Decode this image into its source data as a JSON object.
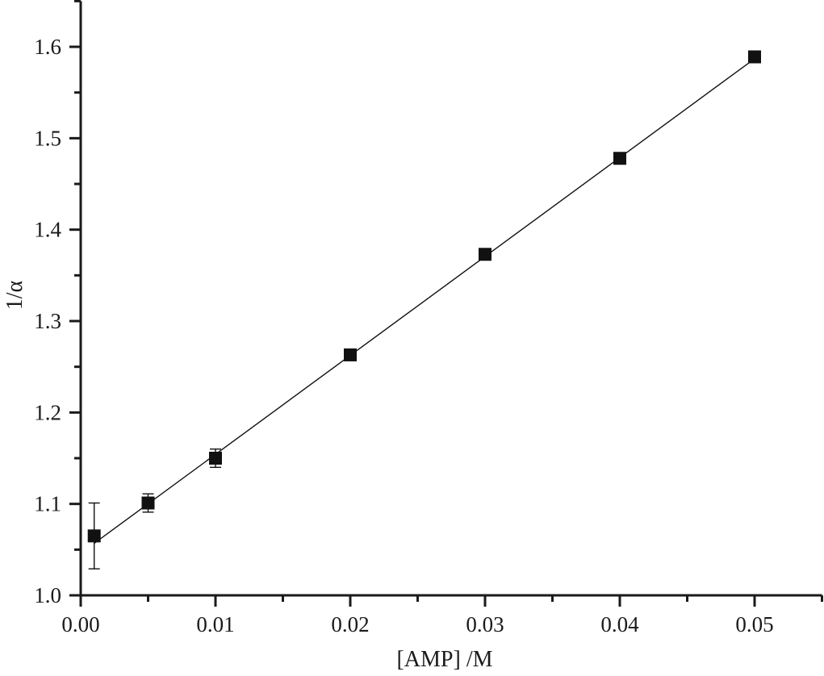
{
  "chart_data": {
    "type": "scatter",
    "title": "",
    "xlabel": "[AMP] /M",
    "ylabel": "1/α",
    "xlim": [
      0.0,
      0.055
    ],
    "ylim": [
      1.0,
      1.65
    ],
    "x_ticks": [
      0.0,
      0.01,
      0.02,
      0.03,
      0.04,
      0.05
    ],
    "x_tick_labels": [
      "0.00",
      "0.01",
      "0.02",
      "0.03",
      "0.04",
      "0.05"
    ],
    "x_minor_ticks": [
      0.005,
      0.015,
      0.025,
      0.035,
      0.045,
      0.055
    ],
    "y_ticks": [
      1.0,
      1.1,
      1.2,
      1.3,
      1.4,
      1.5,
      1.6
    ],
    "y_tick_labels": [
      "1.0",
      "1.1",
      "1.2",
      "1.3",
      "1.4",
      "1.5",
      "1.6"
    ],
    "y_minor_ticks": [
      1.05,
      1.15,
      1.25,
      1.35,
      1.45,
      1.55,
      1.65
    ],
    "grid": false,
    "legend": null,
    "series": [
      {
        "name": "data",
        "marker": "square",
        "color": "#111111",
        "x": [
          0.001,
          0.005,
          0.01,
          0.02,
          0.03,
          0.04,
          0.05
        ],
        "y": [
          1.065,
          1.101,
          1.15,
          1.263,
          1.373,
          1.478,
          1.589
        ],
        "yerr": [
          0.036,
          0.01,
          0.01,
          0.002,
          0.002,
          0.002,
          0.002
        ]
      }
    ],
    "fit_line": {
      "type": "linear",
      "color": "#111111",
      "x_range": [
        0.001,
        0.05
      ],
      "slope": 10.82,
      "intercept": 1.046
    }
  }
}
